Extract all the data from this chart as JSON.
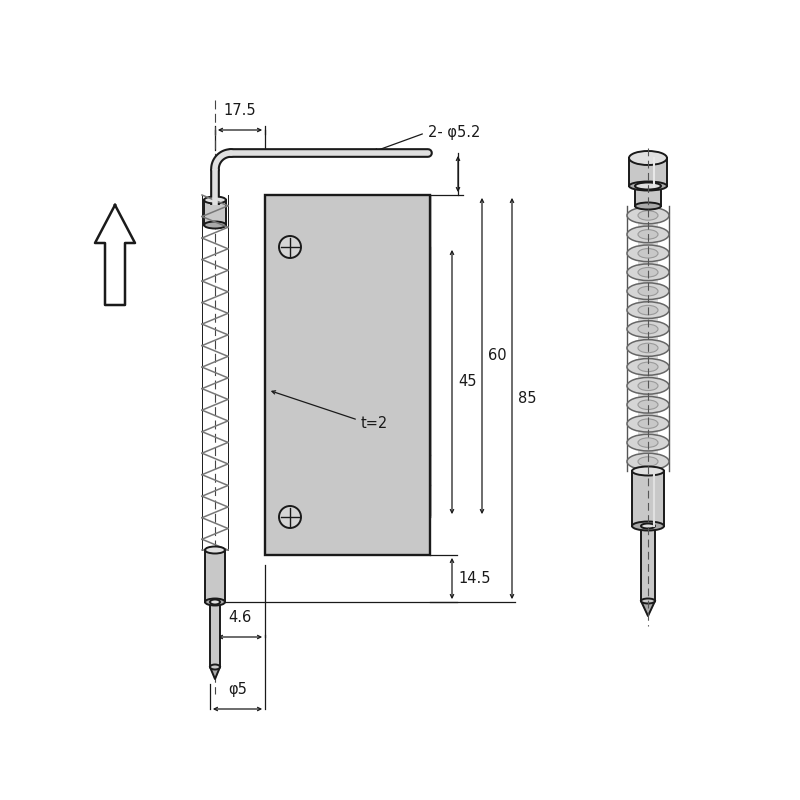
{
  "bg_color": "#ffffff",
  "lc": "#1a1a1a",
  "dc": "#1a1a1a",
  "gray_fill": "#c8c8c8",
  "gray_dark": "#aaaaaa",
  "gray_light": "#e0e0e0",
  "dims": {
    "w175": "17.5",
    "holes": "2- φ5.2",
    "t2": "t=2",
    "d45": "45",
    "d60": "60",
    "d85": "85",
    "d46": "4.6",
    "d145": "14.5",
    "d5": "φ5"
  },
  "fs": 10.5,
  "lw": 1.4
}
